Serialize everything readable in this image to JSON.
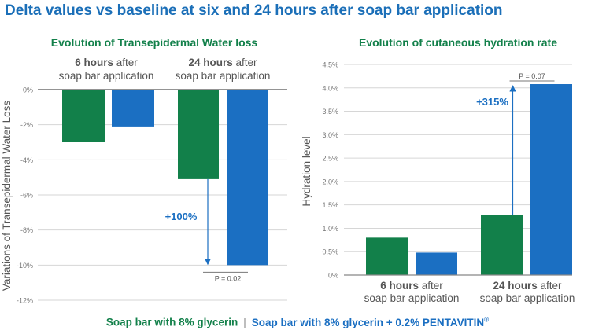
{
  "title": "Delta values vs baseline at six and 24 hours after soap bar application",
  "colors": {
    "series1": "#12804a",
    "series2": "#1b6fc2",
    "title": "#1b6fb8",
    "grid": "#d6d6d6",
    "text": "#555555"
  },
  "legend": {
    "series1": "Soap bar with 8% glycerin",
    "separator": "|",
    "series2": "Soap bar with 8% glycerin + 0.2% PENTAVITIN",
    "series2_mark": "®"
  },
  "chart_data": [
    {
      "type": "bar",
      "title": "Evolution of Transepidermal Water loss",
      "ylabel": "Variations of Transepidermal Water Loss",
      "ylim": [
        -12,
        0
      ],
      "yticks": [
        "0%",
        "-2%",
        "-4%",
        "-6%",
        "-8%",
        "-10%",
        "-12%"
      ],
      "grid": true,
      "categories": [
        {
          "bold": "6 hours",
          "rest": " after",
          "line2": "soap bar application"
        },
        {
          "bold": "24 hours",
          "rest": " after",
          "line2": "soap bar application"
        }
      ],
      "series": [
        {
          "values": [
            -3.0,
            -5.1
          ]
        },
        {
          "values": [
            -2.1,
            -10.0
          ]
        }
      ],
      "annotations": {
        "change": "+100%",
        "pvalue": "P = 0.02"
      }
    },
    {
      "type": "bar",
      "title": "Evolution of  cutaneous hydration rate",
      "ylabel": "Hydration level",
      "ylim": [
        0,
        4.5
      ],
      "yticks": [
        "0%",
        "0.5%",
        "1.0%",
        "1.5%",
        "2.0%",
        "2.5%",
        "3.0%",
        "3.5%",
        "4.0%",
        "4.5%"
      ],
      "grid": true,
      "categories": [
        {
          "bold": "6 hours",
          "rest": " after",
          "line2": "soap bar application"
        },
        {
          "bold": "24 hours",
          "rest": " after",
          "line2": "soap bar application"
        }
      ],
      "series": [
        {
          "values": [
            0.8,
            1.28
          ]
        },
        {
          "values": [
            0.48,
            4.08
          ]
        }
      ],
      "annotations": {
        "change": "+315%",
        "pvalue": "P = 0.07"
      }
    }
  ]
}
